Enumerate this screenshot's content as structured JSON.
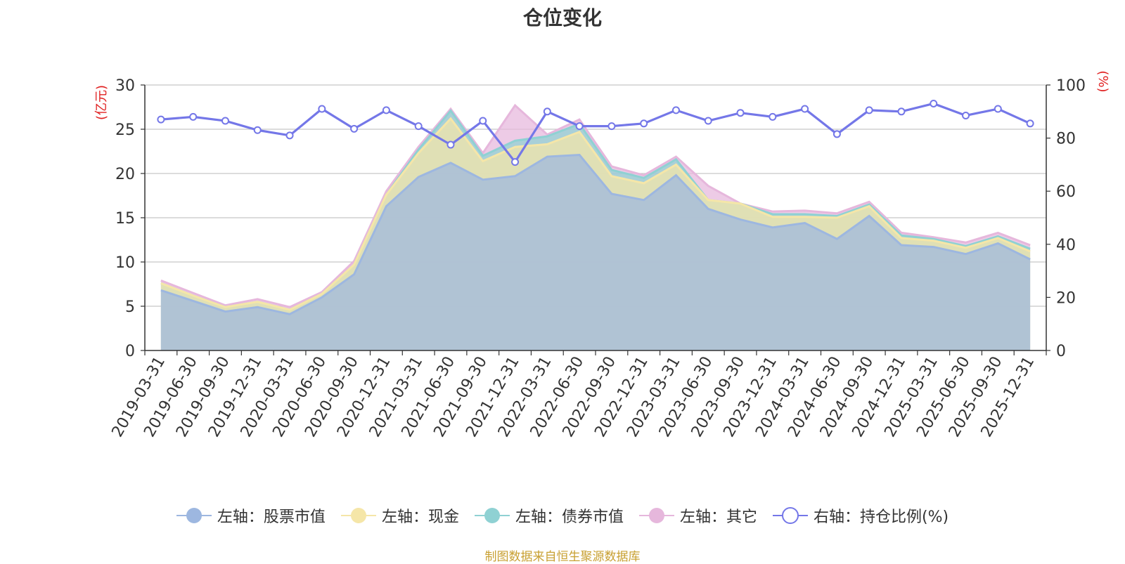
{
  "chart_data": {
    "type": "area",
    "title": "仓位变化",
    "left_axis": {
      "unit_label": "(亿元)",
      "ylim": [
        0,
        30
      ],
      "ticks": [
        0,
        5,
        10,
        15,
        20,
        25,
        30
      ]
    },
    "right_axis": {
      "unit_label": "(%)",
      "ylim": [
        0,
        100
      ],
      "ticks": [
        0,
        20,
        40,
        60,
        80,
        100
      ]
    },
    "categories": [
      "2019-03-31",
      "2019-06-30",
      "2019-09-30",
      "2019-12-31",
      "2020-03-31",
      "2020-06-30",
      "2020-09-30",
      "2020-12-31",
      "2021-03-31",
      "2021-06-30",
      "2021-09-30",
      "2021-12-31",
      "2022-03-31",
      "2022-06-30",
      "2022-09-30",
      "2022-12-31",
      "2023-03-31",
      "2023-06-30",
      "2023-09-30",
      "2023-12-31",
      "2024-03-31",
      "2024-06-30",
      "2024-09-30",
      "2024-12-31",
      "2025-03-31",
      "2025-06-30",
      "2025-09-30",
      "2025-12-31"
    ],
    "series": [
      {
        "name": "左轴：股票市值",
        "axis": "left",
        "kind": "stacked-area",
        "color": "#9db7e0",
        "values": [
          6.8,
          5.6,
          4.4,
          4.9,
          4.1,
          6.0,
          8.6,
          16.3,
          19.6,
          21.2,
          19.3,
          19.7,
          21.9,
          22.1,
          17.7,
          17.0,
          19.8,
          16.0,
          14.8,
          13.9,
          14.4,
          12.6,
          15.2,
          11.9,
          11.7,
          10.9,
          12.1,
          10.3
        ]
      },
      {
        "name": "左轴：现金",
        "axis": "left",
        "kind": "stacked-area",
        "color": "#f5e6a8",
        "values": [
          0.8,
          0.6,
          0.5,
          0.6,
          0.5,
          0.4,
          1.1,
          1.3,
          2.7,
          5.0,
          2.1,
          3.3,
          1.4,
          2.6,
          2.0,
          1.9,
          1.2,
          1.0,
          1.8,
          1.2,
          0.7,
          2.4,
          1.1,
          0.8,
          0.7,
          0.7,
          0.6,
          0.9
        ]
      },
      {
        "name": "左轴：债券市值",
        "axis": "left",
        "kind": "stacked-area",
        "color": "#8fd1d3",
        "values": [
          0,
          0,
          0,
          0,
          0,
          0,
          0,
          0,
          0.4,
          0.9,
          0.6,
          0.7,
          0.9,
          0.9,
          0.7,
          0.6,
          0.6,
          0,
          0,
          0.3,
          0.3,
          0.2,
          0.2,
          0.3,
          0.2,
          0.2,
          0.2,
          0.3
        ]
      },
      {
        "name": "左轴：其它",
        "axis": "left",
        "kind": "stacked-area",
        "color": "#e6b7dc",
        "values": [
          0.3,
          0.3,
          0.2,
          0.3,
          0.3,
          0.2,
          0.4,
          0.4,
          0.3,
          0.2,
          0.3,
          4.0,
          0.2,
          0.5,
          0.4,
          0.3,
          0.3,
          1.6,
          0,
          0.3,
          0.4,
          0.3,
          0.3,
          0.3,
          0.2,
          0.4,
          0.4,
          0.4
        ]
      },
      {
        "name": "右轴：持仓比例(%)",
        "axis": "right",
        "kind": "line",
        "color": "#7477e8",
        "values": [
          87,
          88,
          86.5,
          83,
          81,
          91,
          83.5,
          90.5,
          84.5,
          77.5,
          86.5,
          71,
          90,
          84.5,
          84.5,
          85.5,
          90.5,
          86.5,
          89.5,
          88,
          91,
          81.5,
          90.5,
          90,
          93,
          88.5,
          91,
          85.5
        ]
      }
    ],
    "legend_position": "bottom-center",
    "grid": true
  },
  "footer": {
    "credit": "制图数据来自恒生聚源数据库"
  }
}
